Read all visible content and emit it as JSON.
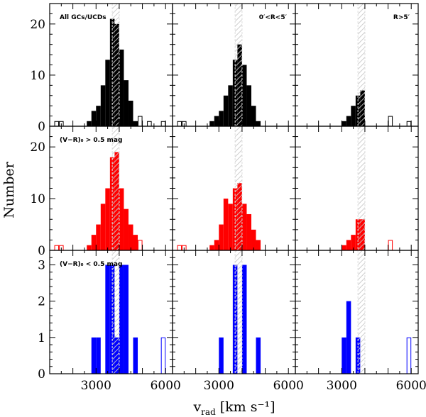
{
  "chart_data": {
    "type": "bar",
    "title": "",
    "xlabel": "v",
    "xlabel_sub": "rad",
    "xlabel_units": "[km s⁻¹]",
    "ylabel": "Number",
    "xlim": [
      1000,
      6300
    ],
    "bin_width": 200,
    "x_ticks": [
      "3000",
      "6000"
    ],
    "x_tick_values": [
      3000,
      6000
    ],
    "shade_band": [
      3700,
      4000
    ],
    "colors": {
      "row0": "#000000",
      "row1": "#ff0000",
      "row2": "#0000ff",
      "shade": "#c8c8c8"
    },
    "row_labels": [
      "All GCs/UCDs",
      "(V−R)₀ > 0.5 mag",
      "(V−R)₀ < 0.5 mag"
    ],
    "col_labels": [
      "",
      "0′<R<5′",
      "R>5′"
    ],
    "rows": [
      {
        "ylim": [
          0,
          24
        ],
        "y_ticks": [
          0,
          10,
          20
        ],
        "panels": [
          {
            "filled": [
              [
                2600,
                1
              ],
              [
                2800,
                3
              ],
              [
                3000,
                4
              ],
              [
                3200,
                8
              ],
              [
                3400,
                13
              ],
              [
                3600,
                21
              ],
              [
                3800,
                20
              ],
              [
                4000,
                15
              ],
              [
                4200,
                9
              ],
              [
                4400,
                5
              ],
              [
                4600,
                1
              ]
            ],
            "open": [
              [
                1200,
                1
              ],
              [
                1400,
                1
              ],
              [
                4800,
                2
              ],
              [
                5200,
                1
              ],
              [
                5800,
                1
              ]
            ]
          },
          {
            "filled": [
              [
                2600,
                1
              ],
              [
                2800,
                2
              ],
              [
                3000,
                3
              ],
              [
                3200,
                6
              ],
              [
                3400,
                8
              ],
              [
                3600,
                13
              ],
              [
                3800,
                16
              ],
              [
                4000,
                12
              ],
              [
                4200,
                8
              ],
              [
                4400,
                4
              ],
              [
                4600,
                1
              ]
            ],
            "open": [
              [
                1200,
                1
              ],
              [
                1400,
                1
              ]
            ]
          },
          {
            "filled": [
              [
                3000,
                1
              ],
              [
                3200,
                2
              ],
              [
                3400,
                4
              ],
              [
                3600,
                6
              ],
              [
                3800,
                7
              ]
            ],
            "open": [
              [
                5000,
                2
              ],
              [
                5800,
                1
              ]
            ]
          }
        ]
      },
      {
        "ylim": [
          0,
          24
        ],
        "y_ticks": [
          0,
          10,
          20
        ],
        "panels": [
          {
            "filled": [
              [
                2600,
                1
              ],
              [
                2800,
                3
              ],
              [
                3000,
                5
              ],
              [
                3200,
                9
              ],
              [
                3400,
                12
              ],
              [
                3600,
                18
              ],
              [
                3800,
                19
              ],
              [
                4000,
                12
              ],
              [
                4200,
                8
              ],
              [
                4400,
                5
              ],
              [
                4600,
                3
              ]
            ],
            "open": [
              [
                1200,
                1
              ],
              [
                1400,
                1
              ],
              [
                4800,
                2
              ]
            ]
          },
          {
            "filled": [
              [
                2600,
                1
              ],
              [
                2800,
                2
              ],
              [
                3000,
                5
              ],
              [
                3200,
                10
              ],
              [
                3400,
                9
              ],
              [
                3600,
                12
              ],
              [
                3800,
                13
              ],
              [
                4000,
                9
              ],
              [
                4200,
                7
              ],
              [
                4400,
                4
              ],
              [
                4600,
                2
              ]
            ],
            "open": [
              [
                1200,
                1
              ],
              [
                1400,
                1
              ]
            ]
          },
          {
            "filled": [
              [
                3000,
                1
              ],
              [
                3200,
                2
              ],
              [
                3400,
                3
              ],
              [
                3600,
                6
              ],
              [
                3800,
                6
              ]
            ],
            "open": [
              [
                5000,
                2
              ]
            ]
          }
        ]
      },
      {
        "ylim": [
          0,
          3.4
        ],
        "y_ticks": [
          0,
          1,
          2,
          3
        ],
        "panels": [
          {
            "filled": [
              [
                2800,
                1
              ],
              [
                3000,
                1
              ],
              [
                3400,
                3
              ],
              [
                3600,
                3
              ],
              [
                3800,
                1
              ],
              [
                4000,
                3
              ],
              [
                4200,
                3
              ],
              [
                4600,
                1
              ]
            ],
            "open": [
              [
                5800,
                1
              ]
            ]
          },
          {
            "filled": [
              [
                3000,
                1
              ],
              [
                3600,
                3
              ],
              [
                4000,
                3
              ],
              [
                4600,
                1
              ]
            ],
            "open": []
          },
          {
            "filled": [
              [
                3000,
                1
              ],
              [
                3200,
                2
              ],
              [
                3600,
                1
              ]
            ],
            "open": [
              [
                5800,
                1
              ]
            ]
          }
        ]
      }
    ]
  }
}
